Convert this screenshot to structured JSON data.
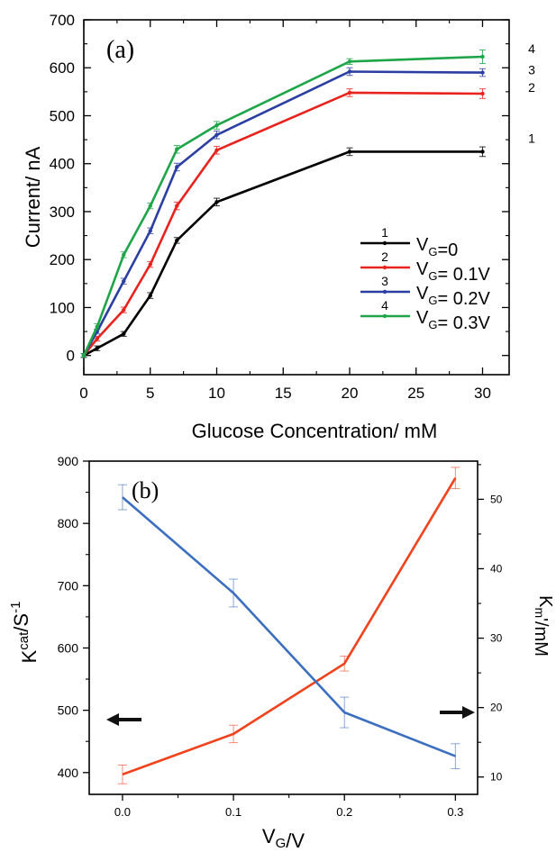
{
  "chart_data": [
    {
      "type": "line",
      "panel_label": "(a)",
      "xlabel": "Glucose Concentration/ mM",
      "ylabel": "Current/ nA",
      "xlim": [
        0,
        32
      ],
      "ylim": [
        -40,
        700
      ],
      "xticks": [
        "0",
        "5",
        "10",
        "15",
        "20",
        "25",
        "30"
      ],
      "yticks": [
        "0",
        "100",
        "200",
        "300",
        "400",
        "500",
        "600",
        "700"
      ],
      "x": [
        0,
        1,
        3,
        5,
        7,
        10,
        20,
        30
      ],
      "series": [
        {
          "name": "1",
          "legend_label": "V_G=0",
          "color": "#000000",
          "end_label": "1",
          "values": [
            0,
            15,
            45,
            125,
            240,
            320,
            425,
            425
          ],
          "errors": [
            4,
            5,
            5,
            6,
            6,
            8,
            8,
            10
          ]
        },
        {
          "name": "2",
          "legend_label": "V_G= 0.1V",
          "color": "#e8231d",
          "end_label": "2",
          "values": [
            0,
            35,
            95,
            190,
            312,
            428,
            548,
            546
          ],
          "errors": [
            4,
            5,
            6,
            6,
            8,
            8,
            8,
            10
          ]
        },
        {
          "name": "3",
          "legend_label": "V_G= 0.2V",
          "color": "#2b3fa3",
          "end_label": "3",
          "values": [
            0,
            50,
            155,
            260,
            393,
            460,
            592,
            590
          ],
          "errors": [
            4,
            5,
            6,
            6,
            8,
            8,
            8,
            8
          ]
        },
        {
          "name": "4",
          "legend_label": "V_G= 0.3V",
          "color": "#1ea548",
          "end_label": "4",
          "values": [
            0,
            60,
            210,
            312,
            430,
            480,
            613,
            623
          ],
          "errors": [
            4,
            6,
            6,
            6,
            8,
            8,
            6,
            14
          ]
        }
      ],
      "legend_position": "bottom-right"
    },
    {
      "type": "line",
      "panel_label": "(b)",
      "xlabel": "V_G/V",
      "ylabel_left": "K^cat/S^-1",
      "ylabel_right": "K_m'/mM",
      "xlim": [
        -0.03,
        0.32
      ],
      "ylim_left": [
        365,
        900
      ],
      "ylim_right": [
        7.5,
        55.5
      ],
      "xticks": [
        "0.0",
        "0.1",
        "0.2",
        "0.3"
      ],
      "yticks_left": [
        "400",
        "500",
        "600",
        "700",
        "800",
        "900"
      ],
      "yticks_right": [
        "10",
        "20",
        "30",
        "40",
        "50"
      ],
      "x": [
        0.0,
        0.1,
        0.2,
        0.3
      ],
      "series": [
        {
          "axis": "left",
          "color": "#f0431c",
          "values": [
            397,
            462,
            575,
            873
          ],
          "errors": [
            15,
            14,
            12,
            17
          ]
        },
        {
          "axis": "right",
          "color": "#3c6fc0",
          "values": [
            50.3,
            36.5,
            19.3,
            13.0
          ],
          "errors": [
            1.8,
            2.0,
            2.2,
            1.8
          ]
        }
      ],
      "arrows": [
        "left",
        "right"
      ]
    }
  ]
}
